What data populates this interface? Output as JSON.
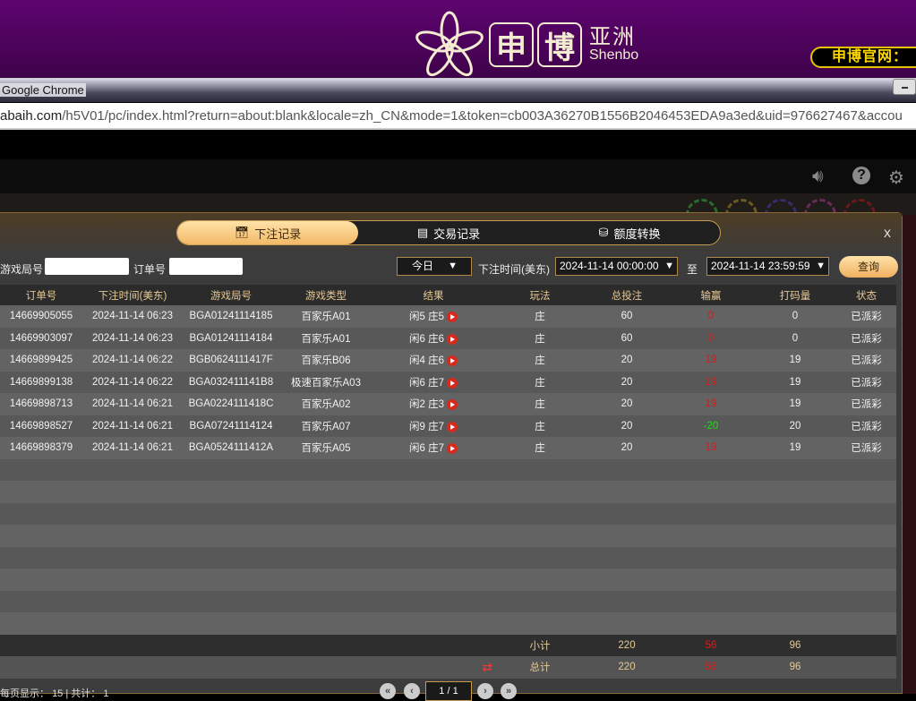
{
  "banner": {
    "brand_char1": "申",
    "brand_char2": "博",
    "brand_sub_cn": "亚洲",
    "brand_sub_en": "Shenbo",
    "site_label": "申博官网："
  },
  "browser": {
    "title": "Google Chrome",
    "url_domain": "abaih.com",
    "url_path": "/h5V01/pc/index.html?return=about:blank&locale=zh_CN&mode=1&token=cb003A36270B1556B2046453EDA9a3ed&uid=976627467&accou"
  },
  "game_toolbar": {
    "icons": [
      "speaker-icon",
      "help-icon",
      "gear-icon"
    ]
  },
  "modal": {
    "tabs": [
      {
        "label": "下注记录",
        "icon": "calendar-icon",
        "active": true
      },
      {
        "label": "交易记录",
        "icon": "document-icon",
        "active": false
      },
      {
        "label": "额度转换",
        "icon": "coins-icon",
        "active": false
      }
    ],
    "close_label": "x",
    "filters": {
      "round_label": "游戏局号",
      "round_value": "",
      "order_label": "订单号",
      "order_value": "",
      "range_select": "今日",
      "time_label": "下注时间(美东)",
      "start": "2024-11-14 00:00:00",
      "to_label": "至",
      "end": "2024-11-14 23:59:59",
      "query_button": "查询"
    },
    "columns": [
      "订单号",
      "下注时间(美东)",
      "游戏局号",
      "游戏类型",
      "结果",
      "玩法",
      "总投注",
      "输赢",
      "打码量",
      "状态"
    ],
    "rows": [
      {
        "order": "14669905055",
        "time": "2024-11-14 06:23",
        "round": "BGA01241114185",
        "game": "百家乐A01",
        "result": "闲5 庄5",
        "play": "庄",
        "bet": "60",
        "winloss": "0",
        "wl_color": "red",
        "valid": "0",
        "status": "已派彩"
      },
      {
        "order": "14669903097",
        "time": "2024-11-14 06:23",
        "round": "BGA01241114184",
        "game": "百家乐A01",
        "result": "闲6 庄6",
        "play": "庄",
        "bet": "60",
        "winloss": "0",
        "wl_color": "red",
        "valid": "0",
        "status": "已派彩"
      },
      {
        "order": "14669899425",
        "time": "2024-11-14 06:22",
        "round": "BGB0624111417F",
        "game": "百家乐B06",
        "result": "闲4 庄6",
        "play": "庄",
        "bet": "20",
        "winloss": "19",
        "wl_color": "red",
        "valid": "19",
        "status": "已派彩"
      },
      {
        "order": "14669899138",
        "time": "2024-11-14 06:22",
        "round": "BGA032411141B8",
        "game": "极速百家乐A03",
        "result": "闲6 庄7",
        "play": "庄",
        "bet": "20",
        "winloss": "19",
        "wl_color": "red",
        "valid": "19",
        "status": "已派彩"
      },
      {
        "order": "14669898713",
        "time": "2024-11-14 06:21",
        "round": "BGA0224111418C",
        "game": "百家乐A02",
        "result": "闲2 庄3",
        "play": "庄",
        "bet": "20",
        "winloss": "19",
        "wl_color": "red",
        "valid": "19",
        "status": "已派彩"
      },
      {
        "order": "14669898527",
        "time": "2024-11-14 06:21",
        "round": "BGA07241114124",
        "game": "百家乐A07",
        "result": "闲9 庄7",
        "play": "庄",
        "bet": "20",
        "winloss": "-20",
        "wl_color": "green",
        "valid": "20",
        "status": "已派彩"
      },
      {
        "order": "14669898379",
        "time": "2024-11-14 06:21",
        "round": "BGA0524111412A",
        "game": "百家乐A05",
        "result": "闲6 庄7",
        "play": "庄",
        "bet": "20",
        "winloss": "19",
        "wl_color": "red",
        "valid": "19",
        "status": "已派彩"
      }
    ],
    "subtotal": {
      "label": "小计",
      "bet": "220",
      "winloss": "56",
      "valid": "96"
    },
    "total": {
      "label": "总计",
      "bet": "220",
      "winloss": "56",
      "valid": "96"
    },
    "footer": {
      "per_page_label": "每页显示：",
      "per_page": "15",
      "separator": "|",
      "total_label": "共计：",
      "total": "1",
      "page": "1 / 1"
    }
  }
}
